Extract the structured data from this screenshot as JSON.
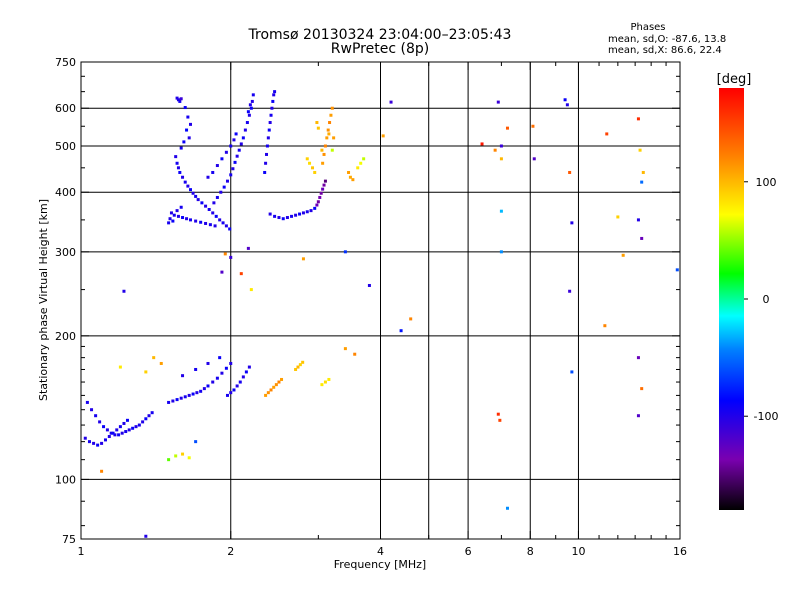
{
  "header": {
    "title": "Tromsø 20130324 23:04:00–23:05:43",
    "subtitle": "RwPretec (8p)",
    "phases_heading": "Phases",
    "phases_o": "mean, sd,O: -87.6, 13.8",
    "phases_x": "mean, sd,X:  86.6, 22.4"
  },
  "chart_data": {
    "type": "scatter",
    "xlabel": "Frequency [MHz]",
    "ylabel": "Stationary phase Virtual Height [km]",
    "xscale": "log",
    "yscale": "log",
    "xlim": [
      1,
      16
    ],
    "ylim": [
      75,
      750
    ],
    "x_ticks": [
      1,
      2,
      4,
      6,
      8,
      10,
      16
    ],
    "x_tick_labels": [
      "1",
      "2",
      "4",
      "6",
      "8",
      "10",
      "16"
    ],
    "y_ticks": [
      75,
      100,
      200,
      300,
      400,
      500,
      600,
      750
    ],
    "y_tick_labels": [
      "75",
      "100",
      "200",
      "300",
      "400",
      "500",
      "600",
      "750"
    ],
    "grid": true,
    "colorbar": {
      "label": "[deg]",
      "range": [
        -180,
        180
      ],
      "tick_values": [
        100,
        0,
        -100
      ],
      "tick_labels": [
        "100",
        "0",
        "-100"
      ]
    },
    "points": [
      [
        1.56,
        630,
        -100
      ],
      [
        1.57,
        625,
        -100
      ],
      [
        1.58,
        620,
        -95
      ],
      [
        1.59,
        628,
        -110
      ],
      [
        1.62,
        602,
        -90
      ],
      [
        1.64,
        575,
        -95
      ],
      [
        1.66,
        555,
        -100
      ],
      [
        1.63,
        540,
        -85
      ],
      [
        1.65,
        520,
        -100
      ],
      [
        1.61,
        510,
        -90
      ],
      [
        1.59,
        495,
        -95
      ],
      [
        1.55,
        475,
        -100
      ],
      [
        1.56,
        460,
        -95
      ],
      [
        1.57,
        450,
        -100
      ],
      [
        1.58,
        440,
        -90
      ],
      [
        1.6,
        430,
        -100
      ],
      [
        1.62,
        420,
        -95
      ],
      [
        1.64,
        412,
        -100
      ],
      [
        1.66,
        405,
        -90
      ],
      [
        1.68,
        398,
        -100
      ],
      [
        1.7,
        392,
        -95
      ],
      [
        1.72,
        386,
        -100
      ],
      [
        1.75,
        380,
        -90
      ],
      [
        1.78,
        374,
        -100
      ],
      [
        1.81,
        368,
        -95
      ],
      [
        1.84,
        362,
        -100
      ],
      [
        1.87,
        356,
        -90
      ],
      [
        1.9,
        350,
        -100
      ],
      [
        1.93,
        345,
        -95
      ],
      [
        1.96,
        340,
        -100
      ],
      [
        1.99,
        335,
        -90
      ],
      [
        1.52,
        362,
        -100
      ],
      [
        1.54,
        358,
        -95
      ],
      [
        1.57,
        356,
        -100
      ],
      [
        1.6,
        354,
        -90
      ],
      [
        1.63,
        352,
        -100
      ],
      [
        1.66,
        350,
        -95
      ],
      [
        1.7,
        348,
        -100
      ],
      [
        1.74,
        346,
        -90
      ],
      [
        1.78,
        344,
        -100
      ],
      [
        1.82,
        342,
        -95
      ],
      [
        1.86,
        340,
        -100
      ],
      [
        1.5,
        345,
        -95
      ],
      [
        1.51,
        352,
        -100
      ],
      [
        1.53,
        348,
        -90
      ],
      [
        1.56,
        366,
        -100
      ],
      [
        1.59,
        372,
        -95
      ],
      [
        1.85,
        380,
        -100
      ],
      [
        1.88,
        390,
        -95
      ],
      [
        1.91,
        400,
        -100
      ],
      [
        1.94,
        410,
        -90
      ],
      [
        1.97,
        422,
        -100
      ],
      [
        2.0,
        435,
        -95
      ],
      [
        2.02,
        448,
        -100
      ],
      [
        2.04,
        462,
        -90
      ],
      [
        2.06,
        476,
        -100
      ],
      [
        2.08,
        490,
        -95
      ],
      [
        2.1,
        505,
        -100
      ],
      [
        2.12,
        520,
        -90
      ],
      [
        2.14,
        540,
        -100
      ],
      [
        2.16,
        560,
        -95
      ],
      [
        2.18,
        580,
        -100
      ],
      [
        2.2,
        600,
        -90
      ],
      [
        2.21,
        620,
        -100
      ],
      [
        2.22,
        640,
        -95
      ],
      [
        2.19,
        610,
        -100
      ],
      [
        2.17,
        590,
        -90
      ],
      [
        1.8,
        430,
        -100
      ],
      [
        1.84,
        440,
        -95
      ],
      [
        1.88,
        455,
        -100
      ],
      [
        1.92,
        470,
        -90
      ],
      [
        1.96,
        485,
        -100
      ],
      [
        2.0,
        500,
        -95
      ],
      [
        2.03,
        515,
        -100
      ],
      [
        2.05,
        530,
        -90
      ],
      [
        2.36,
        480,
        -100
      ],
      [
        2.37,
        500,
        -95
      ],
      [
        2.38,
        520,
        -100
      ],
      [
        2.39,
        540,
        -90
      ],
      [
        2.4,
        560,
        -100
      ],
      [
        2.41,
        580,
        -95
      ],
      [
        2.42,
        600,
        -100
      ],
      [
        2.43,
        620,
        -90
      ],
      [
        2.44,
        640,
        -100
      ],
      [
        2.45,
        650,
        -95
      ],
      [
        2.35,
        460,
        -100
      ],
      [
        2.34,
        440,
        -90
      ],
      [
        2.4,
        360,
        -100
      ],
      [
        2.45,
        356,
        -95
      ],
      [
        2.5,
        354,
        -100
      ],
      [
        2.55,
        352,
        -90
      ],
      [
        2.6,
        354,
        -100
      ],
      [
        2.65,
        356,
        -95
      ],
      [
        2.7,
        358,
        -100
      ],
      [
        2.75,
        360,
        -90
      ],
      [
        2.8,
        362,
        -100
      ],
      [
        2.85,
        364,
        -95
      ],
      [
        2.9,
        366,
        -100
      ],
      [
        2.95,
        370,
        -90
      ],
      [
        2.98,
        376,
        -130
      ],
      [
        3.0,
        382,
        -140
      ],
      [
        3.02,
        390,
        -135
      ],
      [
        3.04,
        398,
        -140
      ],
      [
        3.06,
        406,
        -130
      ],
      [
        3.08,
        414,
        -140
      ],
      [
        3.1,
        422,
        -150
      ],
      [
        3.06,
        460,
        110
      ],
      [
        3.08,
        480,
        115
      ],
      [
        3.1,
        500,
        120
      ],
      [
        3.12,
        520,
        110
      ],
      [
        3.14,
        540,
        115
      ],
      [
        3.16,
        560,
        120
      ],
      [
        3.18,
        580,
        110
      ],
      [
        3.2,
        600,
        115
      ],
      [
        3.05,
        490,
        100
      ],
      [
        3.15,
        530,
        105
      ],
      [
        3.22,
        520,
        110
      ],
      [
        3.2,
        490,
        60
      ],
      [
        2.85,
        470,
        90
      ],
      [
        2.88,
        460,
        85
      ],
      [
        2.92,
        450,
        95
      ],
      [
        2.95,
        440,
        90
      ],
      [
        3.45,
        440,
        110
      ],
      [
        3.48,
        430,
        105
      ],
      [
        3.52,
        425,
        110
      ],
      [
        3.6,
        450,
        80
      ],
      [
        3.65,
        460,
        70
      ],
      [
        3.7,
        470,
        60
      ],
      [
        2.98,
        560,
        100
      ],
      [
        3.0,
        545,
        95
      ],
      [
        1.03,
        145,
        -95
      ],
      [
        1.05,
        140,
        -100
      ],
      [
        1.07,
        136,
        -95
      ],
      [
        1.09,
        132,
        -100
      ],
      [
        1.11,
        129,
        -90
      ],
      [
        1.13,
        127,
        -100
      ],
      [
        1.15,
        125,
        -95
      ],
      [
        1.17,
        124,
        -100
      ],
      [
        1.19,
        124,
        -90
      ],
      [
        1.21,
        125,
        -100
      ],
      [
        1.23,
        126,
        -95
      ],
      [
        1.25,
        127,
        -100
      ],
      [
        1.27,
        128,
        -90
      ],
      [
        1.29,
        129,
        -100
      ],
      [
        1.31,
        130,
        -95
      ],
      [
        1.33,
        132,
        -100
      ],
      [
        1.35,
        134,
        -90
      ],
      [
        1.37,
        136,
        -100
      ],
      [
        1.39,
        138,
        -95
      ],
      [
        1.02,
        122,
        -100
      ],
      [
        1.04,
        120,
        -95
      ],
      [
        1.06,
        119,
        -100
      ],
      [
        1.08,
        118,
        -90
      ],
      [
        1.1,
        119,
        -100
      ],
      [
        1.12,
        121,
        -95
      ],
      [
        1.14,
        123,
        -100
      ],
      [
        1.16,
        125,
        -90
      ],
      [
        1.18,
        127,
        -100
      ],
      [
        1.2,
        129,
        -95
      ],
      [
        1.22,
        131,
        -100
      ],
      [
        1.24,
        133,
        -90
      ],
      [
        1.5,
        145,
        -95
      ],
      [
        1.53,
        146,
        -100
      ],
      [
        1.56,
        147,
        -90
      ],
      [
        1.59,
        148,
        -100
      ],
      [
        1.62,
        149,
        -95
      ],
      [
        1.65,
        150,
        -100
      ],
      [
        1.68,
        151,
        -90
      ],
      [
        1.71,
        152,
        -100
      ],
      [
        1.74,
        153,
        -95
      ],
      [
        1.77,
        155,
        -100
      ],
      [
        1.8,
        157,
        -90
      ],
      [
        1.84,
        160,
        -100
      ],
      [
        1.88,
        163,
        -95
      ],
      [
        1.92,
        167,
        -100
      ],
      [
        1.96,
        171,
        -90
      ],
      [
        2.0,
        175,
        -100
      ],
      [
        1.97,
        150,
        -95
      ],
      [
        2.0,
        152,
        -100
      ],
      [
        2.03,
        154,
        -90
      ],
      [
        2.06,
        157,
        -100
      ],
      [
        2.09,
        160,
        -95
      ],
      [
        2.12,
        164,
        -100
      ],
      [
        2.15,
        168,
        -90
      ],
      [
        2.18,
        172,
        -100
      ],
      [
        1.6,
        165,
        -100
      ],
      [
        1.7,
        170,
        -95
      ],
      [
        1.8,
        175,
        -100
      ],
      [
        1.9,
        180,
        -90
      ],
      [
        2.35,
        150,
        110
      ],
      [
        2.38,
        152,
        115
      ],
      [
        2.41,
        154,
        120
      ],
      [
        2.44,
        156,
        110
      ],
      [
        2.47,
        158,
        115
      ],
      [
        2.5,
        160,
        120
      ],
      [
        2.53,
        162,
        110
      ],
      [
        2.7,
        170,
        95
      ],
      [
        2.73,
        172,
        100
      ],
      [
        2.76,
        174,
        90
      ],
      [
        2.79,
        176,
        95
      ],
      [
        3.05,
        158,
        80
      ],
      [
        3.1,
        160,
        85
      ],
      [
        3.15,
        162,
        80
      ],
      [
        1.4,
        180,
        100
      ],
      [
        1.45,
        175,
        110
      ],
      [
        1.2,
        172,
        80
      ],
      [
        1.35,
        168,
        90
      ],
      [
        1.5,
        110,
        40
      ],
      [
        1.55,
        112,
        60
      ],
      [
        1.6,
        113,
        90
      ],
      [
        1.65,
        111,
        70
      ],
      [
        1.1,
        104,
        120
      ],
      [
        1.7,
        120,
        -60
      ],
      [
        1.35,
        76,
        -100
      ],
      [
        1.22,
        248,
        -100
      ],
      [
        1.92,
        272,
        -120
      ],
      [
        1.95,
        297,
        120
      ],
      [
        2.0,
        292,
        -110
      ],
      [
        2.1,
        270,
        150
      ],
      [
        2.17,
        305,
        -120
      ],
      [
        2.2,
        250,
        80
      ],
      [
        2.8,
        290,
        110
      ],
      [
        3.8,
        255,
        -100
      ],
      [
        3.4,
        188,
        110
      ],
      [
        3.55,
        183,
        120
      ],
      [
        4.4,
        205,
        -80
      ],
      [
        4.6,
        217,
        120
      ],
      [
        4.2,
        618,
        -110
      ],
      [
        4.05,
        525,
        110
      ],
      [
        6.4,
        505,
        170
      ],
      [
        6.8,
        490,
        120
      ],
      [
        7.0,
        470,
        100
      ],
      [
        7.0,
        500,
        -110
      ],
      [
        7.2,
        545,
        140
      ],
      [
        7.0,
        365,
        -30
      ],
      [
        7.0,
        300,
        -40
      ],
      [
        6.9,
        618,
        -110
      ],
      [
        8.1,
        550,
        130
      ],
      [
        8.15,
        470,
        -120
      ],
      [
        9.5,
        610,
        -100
      ],
      [
        9.4,
        625,
        -90
      ],
      [
        9.6,
        440,
        140
      ],
      [
        9.7,
        345,
        -100
      ],
      [
        9.6,
        248,
        -110
      ],
      [
        11.4,
        530,
        150
      ],
      [
        12.0,
        355,
        90
      ],
      [
        12.3,
        295,
        110
      ],
      [
        13.2,
        570,
        160
      ],
      [
        13.3,
        490,
        90
      ],
      [
        13.5,
        440,
        100
      ],
      [
        13.4,
        420,
        -50
      ],
      [
        13.2,
        350,
        -100
      ],
      [
        13.4,
        320,
        -130
      ],
      [
        11.3,
        210,
        120
      ],
      [
        13.2,
        180,
        -130
      ],
      [
        13.4,
        155,
        130
      ],
      [
        13.2,
        136,
        -120
      ],
      [
        9.7,
        168,
        -60
      ],
      [
        6.9,
        137,
        160
      ],
      [
        6.95,
        133,
        150
      ],
      [
        7.2,
        87,
        -40
      ],
      [
        15.8,
        275,
        -60
      ],
      [
        3.4,
        300,
        -70
      ]
    ]
  }
}
